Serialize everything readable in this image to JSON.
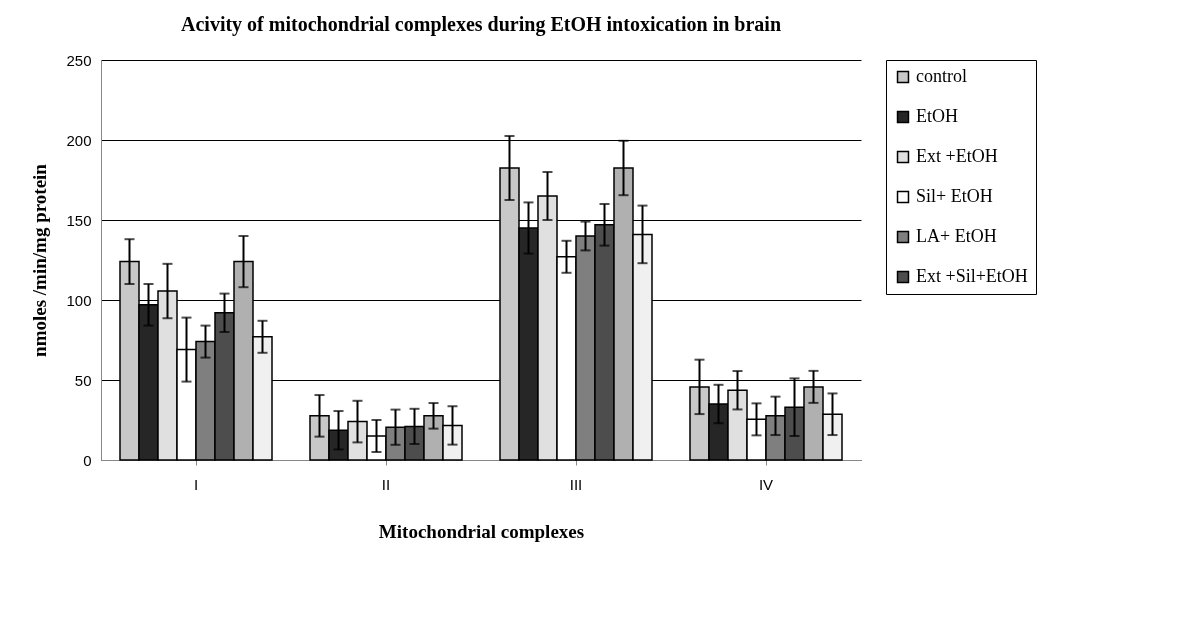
{
  "chart_data": {
    "type": "bar",
    "title": "Acivity of mitochondrial complexes during EtOH intoxication  in brain",
    "xlabel": "Mitochondrial complexes",
    "ylabel": "nmoles /min/mg protein",
    "categories": [
      "I",
      "II",
      "III",
      "IV"
    ],
    "series": [
      {
        "name": "control",
        "color": "#c8c8c8",
        "values": [
          124,
          27.6,
          182.5,
          45.7
        ],
        "errors": [
          14,
          13,
          20,
          17
        ]
      },
      {
        "name": "EtOH",
        "color": "#262626",
        "values": [
          97,
          18.6,
          145,
          35
        ],
        "errors": [
          13,
          12,
          16,
          12
        ]
      },
      {
        "name": "Ext +EtOH",
        "color": "#e0e0e0",
        "values": [
          105.6,
          24,
          165,
          43.6
        ],
        "errors": [
          17,
          13,
          15,
          12
        ]
      },
      {
        "name": "Sil+  EtOH",
        "color": "#ffffff",
        "values": [
          69,
          15,
          127,
          25.4
        ],
        "errors": [
          20,
          10,
          10,
          10
        ]
      },
      {
        "name": "LA+  EtOH",
        "color": "#7f7f7f",
        "values": [
          74,
          20.5,
          140,
          27.6
        ],
        "errors": [
          10,
          11,
          9,
          12
        ]
      },
      {
        "name": "Ext +Sil+EtOH",
        "color": "#4d4d4d",
        "values": [
          92,
          21,
          147,
          33
        ],
        "errors": [
          12,
          11,
          13,
          18
        ]
      },
      {
        "color": "#b0b0b0",
        "values": [
          124,
          27.6,
          182.5,
          45.7
        ],
        "errors": [
          16,
          8,
          17,
          10
        ]
      },
      {
        "color": "#f0f0f0",
        "values": [
          77,
          21.6,
          141,
          28.6
        ],
        "errors": [
          10,
          12,
          18,
          13
        ]
      }
    ],
    "ylim": [
      0,
      250
    ],
    "yticks": [
      0,
      50,
      100,
      150,
      200,
      250
    ],
    "grid": "y",
    "legend": "right"
  }
}
